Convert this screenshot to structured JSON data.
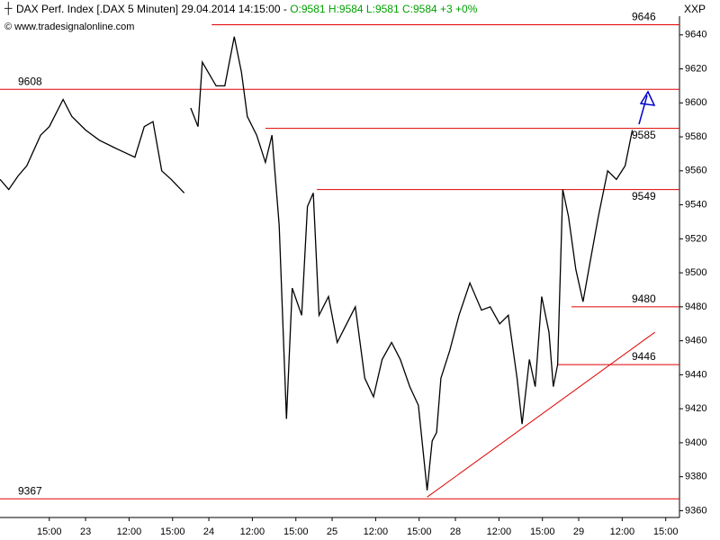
{
  "chart_data": {
    "type": "line",
    "title": "DAX Perf. Index [.DAX  5 Minuten] 29.04.2014 14:15:00 -",
    "quote": "O:9581 H:9584 L:9581 C:9584 +3 +0%",
    "quote_color": "#00a000",
    "subtitle": "© www.tradesignalonline.com",
    "axis_label": "XXP",
    "xlim": [
      -11.8,
      81.9
    ],
    "ylim": [
      9356,
      9651
    ],
    "yticks": [
      9360,
      9380,
      9400,
      9420,
      9440,
      9460,
      9480,
      9500,
      9520,
      9540,
      9560,
      9580,
      9600,
      9620,
      9640
    ],
    "xticks": [
      {
        "value": -5,
        "label": "15:00"
      },
      {
        "value": 0,
        "label": "23"
      },
      {
        "value": 6,
        "label": "12:00"
      },
      {
        "value": 12,
        "label": "15:00"
      },
      {
        "value": 17,
        "label": "24"
      },
      {
        "value": 23,
        "label": "12:00"
      },
      {
        "value": 29,
        "label": "15:00"
      },
      {
        "value": 34,
        "label": "25"
      },
      {
        "value": 40,
        "label": "12:00"
      },
      {
        "value": 46,
        "label": "15:00"
      },
      {
        "value": 51,
        "label": "28"
      },
      {
        "value": 57,
        "label": "12:00"
      },
      {
        "value": 63,
        "label": "15:00"
      },
      {
        "value": 68,
        "label": "29"
      },
      {
        "value": 74,
        "label": "12:00"
      },
      {
        "value": 80,
        "label": "15:00"
      }
    ],
    "series": [
      {
        "name": "DAX",
        "color": "#000000",
        "x": [
          -11.8,
          -10.6,
          -9.3,
          -8.1,
          -6.2,
          -5.0,
          -3.1,
          -1.9,
          0,
          1.9,
          4.3,
          6.8,
          8.1,
          9.3,
          10.5,
          11.8,
          13.6,
          14.0,
          14.5,
          15.5,
          16.1,
          18.0,
          19.2,
          20.5,
          21.5,
          22.3,
          23.6,
          24.8,
          25.7,
          26.7,
          27.7,
          28.5,
          29.8,
          30.6,
          31.4,
          32.2,
          33.5,
          34.7,
          36.0,
          37.2,
          38.5,
          39.7,
          40.9,
          42.2,
          43.4,
          44.7,
          45.9,
          47.1,
          47.8,
          48.4,
          49.0,
          50.2,
          51.5,
          53.0,
          54.6,
          55.8,
          57.1,
          58.3,
          59.5,
          60.2,
          61.2,
          62.0,
          62.9,
          63.9,
          64.5,
          65.1,
          65.8,
          66.6,
          67.6,
          68.6,
          69.6,
          70.7,
          72.0,
          73.2,
          74.4,
          75.4
        ],
        "values": [
          9555,
          9549,
          9557,
          9563,
          9581,
          9586,
          9602,
          9592,
          9584,
          9578,
          9573,
          9568,
          9586,
          9589,
          9560,
          9555,
          9547,
          null,
          9597,
          9586,
          9624,
          9610,
          9610,
          9639,
          9618,
          9592,
          9581,
          9565,
          9581,
          9528,
          9414,
          9491,
          9475,
          9539,
          9547,
          9475,
          9486,
          9459,
          9470,
          9480,
          9438,
          9427,
          9449,
          9459,
          9449,
          9433,
          9422,
          9372,
          9401,
          9406,
          9438,
          9454,
          9475,
          9494,
          9478,
          9480,
          9470,
          9475,
          9438,
          9411,
          9449,
          9433,
          9486,
          9465,
          9433,
          9446,
          9549,
          9533,
          9502,
          9483,
          9507,
          9533,
          9560,
          9555,
          9563,
          9584
        ]
      }
    ],
    "levels_color": "#e00000",
    "levels": [
      {
        "value": 9646,
        "start": 17.4
      },
      {
        "value": 9608,
        "start": -11.8
      },
      {
        "value": 9585,
        "start": 24.8
      },
      {
        "value": 9549,
        "start": 31.9
      },
      {
        "value": 9480,
        "start": 67.0
      },
      {
        "value": 9446,
        "start": 65.1
      },
      {
        "value": 9367,
        "start": -11.8
      }
    ],
    "trendline": {
      "x": [
        47.1,
        78.5
      ],
      "values": [
        9368,
        9465
      ]
    }
  }
}
